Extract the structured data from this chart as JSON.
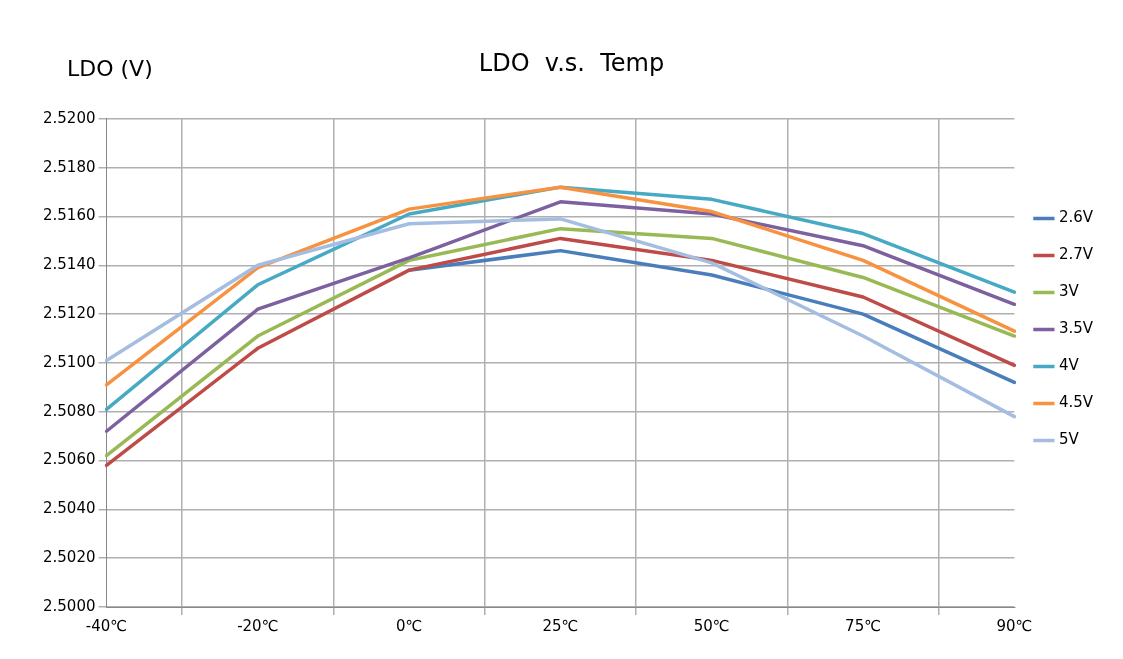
{
  "chart_data": {
    "type": "line",
    "title": "LDO  v.s.  Temp",
    "ylabel": "LDO (V)",
    "categories": [
      "-40℃",
      "-20℃",
      "0℃",
      "25℃",
      "50℃",
      "75℃",
      "90℃"
    ],
    "series": [
      {
        "name": "2.6V",
        "color": "#4a7ebb",
        "values": [
          null,
          null,
          2.5138,
          2.5146,
          2.5136,
          2.512,
          2.5092
        ]
      },
      {
        "name": "2.7V",
        "color": "#be4b48",
        "values": [
          2.5058,
          2.5106,
          2.5138,
          2.5151,
          2.5142,
          2.5127,
          2.5099
        ]
      },
      {
        "name": "3V",
        "color": "#98b954",
        "values": [
          2.5062,
          2.5111,
          2.5142,
          2.5155,
          2.5151,
          2.5135,
          2.5111
        ]
      },
      {
        "name": "3.5V",
        "color": "#7d60a0",
        "values": [
          2.5072,
          2.5122,
          2.5143,
          2.5166,
          2.5161,
          2.5148,
          2.5124
        ]
      },
      {
        "name": "4V",
        "color": "#46aac5",
        "values": [
          2.5081,
          2.5132,
          2.5161,
          2.5172,
          2.5167,
          2.5153,
          2.5129
        ]
      },
      {
        "name": "4.5V",
        "color": "#f69240",
        "values": [
          2.5091,
          2.5139,
          2.5163,
          2.5172,
          2.5162,
          2.5142,
          2.5113
        ]
      },
      {
        "name": "5V",
        "color": "#a4bde0",
        "values": [
          2.5101,
          2.514,
          2.5157,
          2.5159,
          2.5141,
          2.5111,
          2.5078
        ]
      }
    ],
    "ylim": [
      2.5,
      2.52
    ],
    "yticks": [
      {
        "value": 2.5,
        "label": "2.5000"
      },
      {
        "value": 2.502,
        "label": "2.5020"
      },
      {
        "value": 2.504,
        "label": "2.5040"
      },
      {
        "value": 2.506,
        "label": "2.5060"
      },
      {
        "value": 2.508,
        "label": "2.5080"
      },
      {
        "value": 2.51,
        "label": "2.5100"
      },
      {
        "value": 2.512,
        "label": "2.5120"
      },
      {
        "value": 2.514,
        "label": "2.5140"
      },
      {
        "value": 2.516,
        "label": "2.5160"
      },
      {
        "value": 2.518,
        "label": "2.5180"
      },
      {
        "value": 2.52,
        "label": "2.5200"
      }
    ],
    "grid": true,
    "legend": "right",
    "marker": "none",
    "line_style": "solid"
  }
}
